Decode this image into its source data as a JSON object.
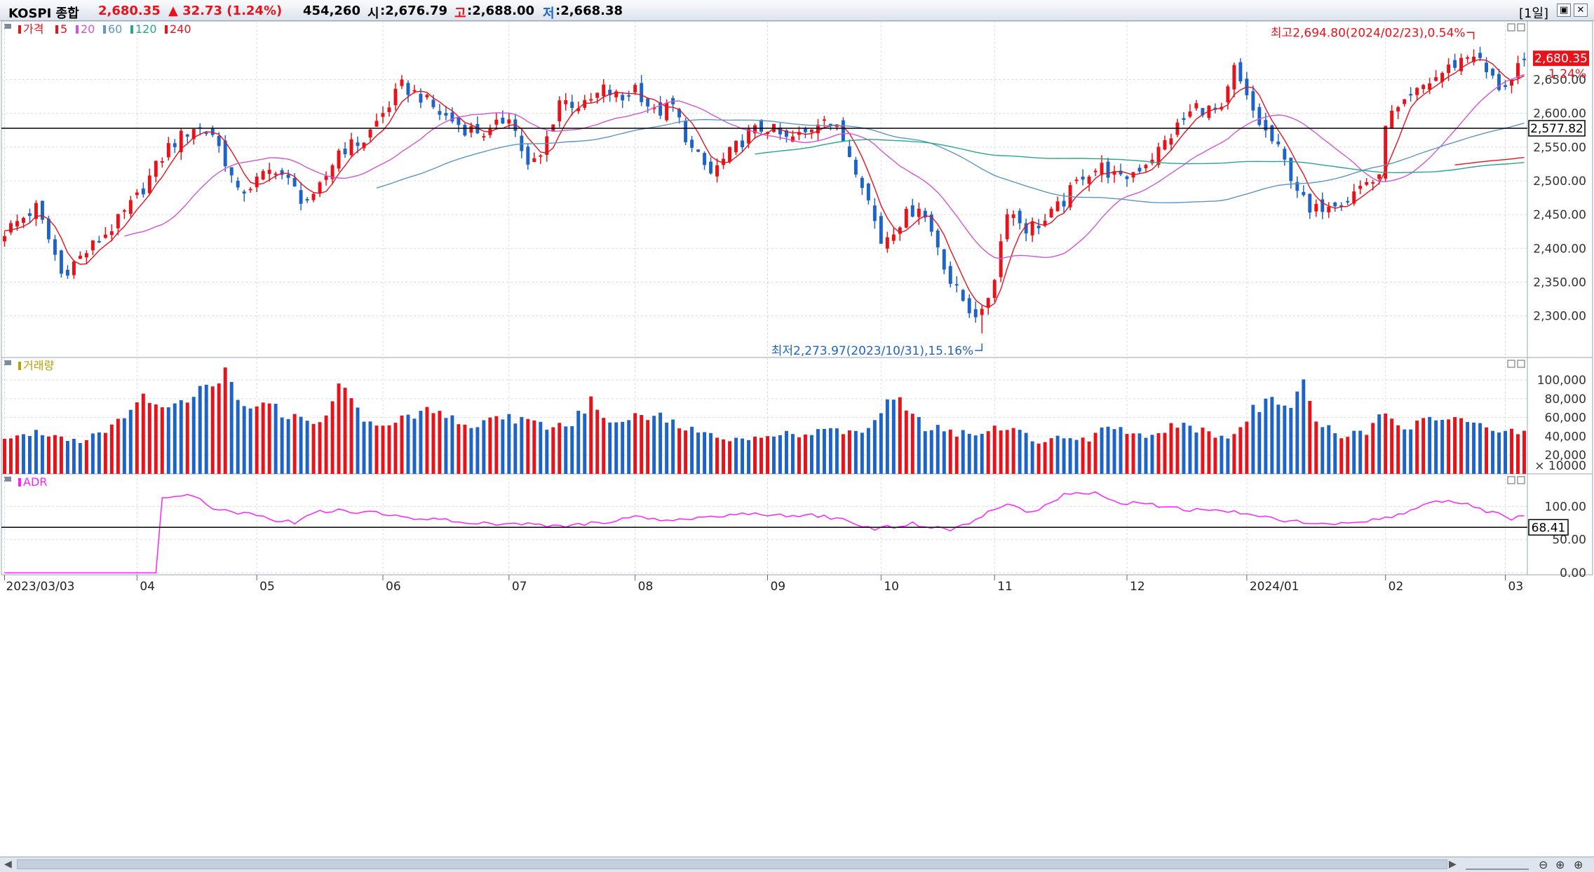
{
  "header": {
    "name": "KOSPI 종합",
    "price": "2,680.35",
    "change": "▲ 32.73 (1.24%)",
    "volume": "454,260",
    "open_label": "시",
    "open": ":2,676.79",
    "high_label": "고",
    "high": ":2,688.00",
    "low_label": "저",
    "low": ":2,668.38",
    "period": "[1일]"
  },
  "colors": {
    "up": "#e8121b",
    "down": "#1e64c8",
    "ma5": "#e8121b",
    "ma20": "#d455d4",
    "ma60": "#5a96c8",
    "ma120": "#28a690",
    "ma240": "#e8121b",
    "adr": "#ff22ff",
    "volume_label": "#b8a000"
  },
  "chart_data": [
    {
      "type": "candlestick",
      "panel": "price",
      "legend": [
        "가격",
        "5",
        "20",
        "60",
        "120",
        "240"
      ],
      "y_ticks": [
        2300,
        2350,
        2400,
        2450,
        2500,
        2550,
        2600,
        2650
      ],
      "y_tick_labels": [
        "2,300.00",
        "2,350.00",
        "2,400.00",
        "2,450.00",
        "2,500.00",
        "2,550.00",
        "2,600.00",
        "2,650.00"
      ],
      "ylim": [
        2255,
        2720
      ],
      "x_labels": [
        "2023/03/03",
        "04",
        "05",
        "06",
        "07",
        "08",
        "09",
        "10",
        "11",
        "12",
        "2024/01",
        "02",
        "03"
      ],
      "x_label_index": [
        0,
        21,
        40,
        60,
        80,
        100,
        121,
        139,
        157,
        178,
        197,
        219,
        238
      ],
      "n_bars": 242,
      "anchors": [
        [
          0,
          2425
        ],
        [
          5,
          2460
        ],
        [
          8,
          2390
        ],
        [
          9,
          2362
        ],
        [
          13,
          2395
        ],
        [
          18,
          2440
        ],
        [
          21,
          2475
        ],
        [
          26,
          2550
        ],
        [
          30,
          2580
        ],
        [
          33,
          2570
        ],
        [
          35,
          2530
        ],
        [
          37,
          2480
        ],
        [
          40,
          2500
        ],
        [
          43,
          2520
        ],
        [
          47,
          2475
        ],
        [
          49,
          2470
        ],
        [
          53,
          2545
        ],
        [
          57,
          2560
        ],
        [
          60,
          2600
        ],
        [
          63,
          2640
        ],
        [
          66,
          2625
        ],
        [
          69,
          2600
        ],
        [
          73,
          2578
        ],
        [
          77,
          2570
        ],
        [
          80,
          2600
        ],
        [
          83,
          2520
        ],
        [
          85,
          2535
        ],
        [
          88,
          2620
        ],
        [
          92,
          2610
        ],
        [
          95,
          2635
        ],
        [
          98,
          2620
        ],
        [
          100,
          2640
        ],
        [
          103,
          2600
        ],
        [
          106,
          2610
        ],
        [
          109,
          2545
        ],
        [
          112,
          2510
        ],
        [
          115,
          2540
        ],
        [
          118,
          2570
        ],
        [
          121,
          2580
        ],
        [
          124,
          2560
        ],
        [
          127,
          2570
        ],
        [
          130,
          2600
        ],
        [
          133,
          2560
        ],
        [
          136,
          2500
        ],
        [
          139,
          2410
        ],
        [
          142,
          2440
        ],
        [
          145,
          2465
        ],
        [
          148,
          2405
        ],
        [
          150,
          2350
        ],
        [
          153,
          2310
        ],
        [
          155,
          2300
        ],
        [
          157,
          2360
        ],
        [
          159,
          2460
        ],
        [
          162,
          2430
        ],
        [
          165,
          2440
        ],
        [
          168,
          2470
        ],
        [
          171,
          2510
        ],
        [
          174,
          2520
        ],
        [
          177,
          2500
        ],
        [
          180,
          2520
        ],
        [
          183,
          2545
        ],
        [
          186,
          2580
        ],
        [
          189,
          2610
        ],
        [
          193,
          2600
        ],
        [
          195,
          2665
        ],
        [
          197,
          2620
        ],
        [
          199,
          2585
        ],
        [
          202,
          2545
        ],
        [
          205,
          2490
        ],
        [
          207,
          2450
        ],
        [
          210,
          2470
        ],
        [
          213,
          2475
        ],
        [
          216,
          2500
        ],
        [
          218,
          2500
        ],
        [
          219,
          2590
        ],
        [
          222,
          2610
        ],
        [
          225,
          2640
        ],
        [
          228,
          2660
        ],
        [
          231,
          2680
        ],
        [
          233,
          2690
        ],
        [
          235,
          2660
        ],
        [
          237,
          2640
        ],
        [
          239,
          2648
        ],
        [
          241,
          2680
        ]
      ],
      "ma_periods": [
        5,
        20,
        60,
        120,
        240
      ],
      "hline": {
        "value": 2577.82,
        "label": "2,577.82"
      },
      "last": {
        "label": "2,680.35",
        "pct": "1.24%",
        "value": 2680.35
      },
      "high_annotation": {
        "text": "최고2,694.80(2024/02/23),0.54%",
        "value": 2694.8,
        "index": 233
      },
      "low_annotation": {
        "text": "최저2,273.97(2023/10/31),15.16%",
        "value": 2273.97,
        "index": 155
      }
    },
    {
      "type": "bar",
      "panel": "volume",
      "legend": [
        "거래량"
      ],
      "unit_label": "× 10000",
      "y_ticks": [
        20000,
        40000,
        60000,
        80000,
        100000
      ],
      "y_tick_labels": [
        "20,000",
        "40,000",
        "60,000",
        "80,000",
        "100,000"
      ],
      "ylim": [
        0,
        112000
      ],
      "anchors": [
        [
          0,
          38000
        ],
        [
          6,
          45000
        ],
        [
          12,
          35000
        ],
        [
          18,
          55000
        ],
        [
          22,
          80000
        ],
        [
          25,
          75000
        ],
        [
          30,
          85000
        ],
        [
          33,
          90000
        ],
        [
          35,
          105000
        ],
        [
          38,
          75000
        ],
        [
          41,
          80000
        ],
        [
          44,
          65000
        ],
        [
          48,
          55000
        ],
        [
          51,
          58000
        ],
        [
          53,
          105000
        ],
        [
          56,
          65000
        ],
        [
          60,
          48000
        ],
        [
          64,
          62000
        ],
        [
          67,
          70000
        ],
        [
          70,
          62000
        ],
        [
          74,
          50000
        ],
        [
          78,
          60000
        ],
        [
          82,
          58000
        ],
        [
          86,
          50000
        ],
        [
          90,
          55000
        ],
        [
          93,
          75000
        ],
        [
          96,
          55000
        ],
        [
          100,
          65000
        ],
        [
          104,
          60000
        ],
        [
          108,
          50000
        ],
        [
          112,
          40000
        ],
        [
          116,
          38000
        ],
        [
          120,
          40000
        ],
        [
          124,
          42000
        ],
        [
          128,
          42000
        ],
        [
          132,
          48000
        ],
        [
          135,
          42000
        ],
        [
          138,
          55000
        ],
        [
          141,
          85000
        ],
        [
          143,
          70000
        ],
        [
          146,
          50000
        ],
        [
          150,
          45000
        ],
        [
          154,
          40000
        ],
        [
          157,
          50000
        ],
        [
          161,
          45000
        ],
        [
          164,
          35000
        ],
        [
          168,
          40000
        ],
        [
          172,
          38000
        ],
        [
          175,
          55000
        ],
        [
          178,
          45000
        ],
        [
          181,
          40000
        ],
        [
          185,
          50000
        ],
        [
          188,
          50000
        ],
        [
          192,
          40000
        ],
        [
          195,
          42000
        ],
        [
          198,
          70000
        ],
        [
          201,
          75000
        ],
        [
          204,
          75000
        ],
        [
          206,
          96000
        ],
        [
          208,
          55000
        ],
        [
          212,
          40000
        ],
        [
          216,
          45000
        ],
        [
          219,
          70000
        ],
        [
          222,
          50000
        ],
        [
          225,
          55000
        ],
        [
          228,
          58000
        ],
        [
          231,
          55000
        ],
        [
          234,
          50000
        ],
        [
          237,
          45000
        ],
        [
          241,
          45000
        ]
      ],
      "down_ranges": [
        [
          3,
          6
        ],
        [
          10,
          12
        ],
        [
          14,
          15
        ],
        [
          19,
          20
        ],
        [
          26,
          28
        ],
        [
          30,
          32
        ],
        [
          36,
          39
        ],
        [
          43,
          45
        ],
        [
          47,
          48
        ],
        [
          56,
          58
        ],
        [
          64,
          66
        ],
        [
          70,
          71
        ],
        [
          74,
          76
        ],
        [
          79,
          82
        ],
        [
          85,
          86
        ],
        [
          89,
          92
        ],
        [
          96,
          99
        ],
        [
          103,
          106
        ],
        [
          109,
          112
        ],
        [
          116,
          118
        ],
        [
          122,
          125
        ],
        [
          128,
          132
        ],
        [
          135,
          141
        ],
        [
          145,
          149
        ],
        [
          152,
          155
        ],
        [
          161,
          163
        ],
        [
          167,
          170
        ],
        [
          174,
          177
        ],
        [
          180,
          182
        ],
        [
          187,
          189
        ],
        [
          193,
          194
        ],
        [
          198,
          206
        ],
        [
          209,
          211
        ],
        [
          214,
          215
        ],
        [
          218,
          218
        ],
        [
          222,
          223
        ],
        [
          226,
          228
        ],
        [
          232,
          234
        ],
        [
          236,
          238
        ]
      ]
    },
    {
      "type": "line",
      "panel": "ADR",
      "legend": [
        "ADR"
      ],
      "y_ticks": [
        0,
        50,
        100
      ],
      "y_tick_labels": [
        "0.00",
        "50.00",
        "100.00"
      ],
      "ylim": [
        -3,
        132
      ],
      "start_index": 25,
      "anchors": [
        [
          0,
          0
        ],
        [
          24,
          0
        ],
        [
          25,
          113
        ],
        [
          27,
          113
        ],
        [
          29,
          118
        ],
        [
          31,
          112
        ],
        [
          33,
          95
        ],
        [
          36,
          92
        ],
        [
          40,
          88
        ],
        [
          43,
          80
        ],
        [
          46,
          76
        ],
        [
          49,
          90
        ],
        [
          52,
          94
        ],
        [
          56,
          92
        ],
        [
          60,
          90
        ],
        [
          64,
          84
        ],
        [
          68,
          80
        ],
        [
          72,
          78
        ],
        [
          76,
          74
        ],
        [
          80,
          72
        ],
        [
          84,
          74
        ],
        [
          88,
          70
        ],
        [
          92,
          74
        ],
        [
          96,
          78
        ],
        [
          100,
          84
        ],
        [
          104,
          80
        ],
        [
          108,
          82
        ],
        [
          112,
          84
        ],
        [
          116,
          86
        ],
        [
          120,
          90
        ],
        [
          124,
          84
        ],
        [
          128,
          86
        ],
        [
          132,
          82
        ],
        [
          135,
          72
        ],
        [
          138,
          66
        ],
        [
          141,
          70
        ],
        [
          144,
          74
        ],
        [
          147,
          68
        ],
        [
          150,
          66
        ],
        [
          153,
          76
        ],
        [
          156,
          90
        ],
        [
          159,
          105
        ],
        [
          162,
          90
        ],
        [
          165,
          100
        ],
        [
          168,
          118
        ],
        [
          171,
          122
        ],
        [
          174,
          118
        ],
        [
          177,
          104
        ],
        [
          180,
          108
        ],
        [
          183,
          100
        ],
        [
          186,
          96
        ],
        [
          190,
          94
        ],
        [
          194,
          92
        ],
        [
          198,
          86
        ],
        [
          202,
          80
        ],
        [
          206,
          76
        ],
        [
          210,
          72
        ],
        [
          214,
          74
        ],
        [
          218,
          80
        ],
        [
          221,
          88
        ],
        [
          224,
          96
        ],
        [
          227,
          108
        ],
        [
          230,
          106
        ],
        [
          233,
          100
        ],
        [
          236,
          90
        ],
        [
          239,
          82
        ],
        [
          241,
          86
        ]
      ],
      "hline": {
        "value": 68.41,
        "label": "68.41"
      }
    }
  ]
}
